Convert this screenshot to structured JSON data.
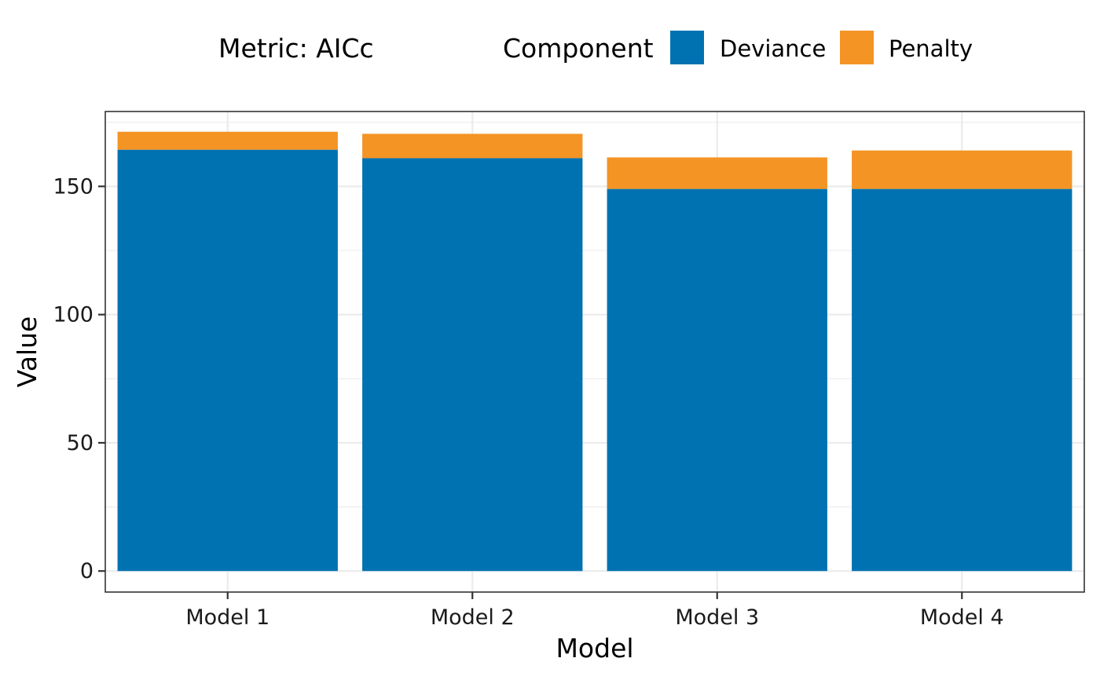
{
  "legend": {
    "metric_label": "Metric: AICc",
    "title": "Component",
    "items": [
      {
        "label": "Deviance",
        "color": "#0072B2"
      },
      {
        "label": "Penalty",
        "color": "#F39425"
      }
    ]
  },
  "chart_data": {
    "type": "bar",
    "stacked": true,
    "categories": [
      "Model 1",
      "Model 2",
      "Model 3",
      "Model 4"
    ],
    "series": [
      {
        "name": "Deviance",
        "color": "#0072B2",
        "values": [
          164.3,
          161.0,
          149.0,
          149.0
        ]
      },
      {
        "name": "Penalty",
        "color": "#F39425",
        "values": [
          7.0,
          9.5,
          12.3,
          15.0
        ]
      }
    ],
    "xlabel": "Model",
    "ylabel": "Value",
    "ylim": [
      -8.2,
      179.2
    ],
    "yticks": [
      0,
      50,
      100,
      150
    ],
    "ytick_labels": [
      "0",
      "50",
      "100",
      "150"
    ],
    "grid": true,
    "legend_position": "top"
  }
}
